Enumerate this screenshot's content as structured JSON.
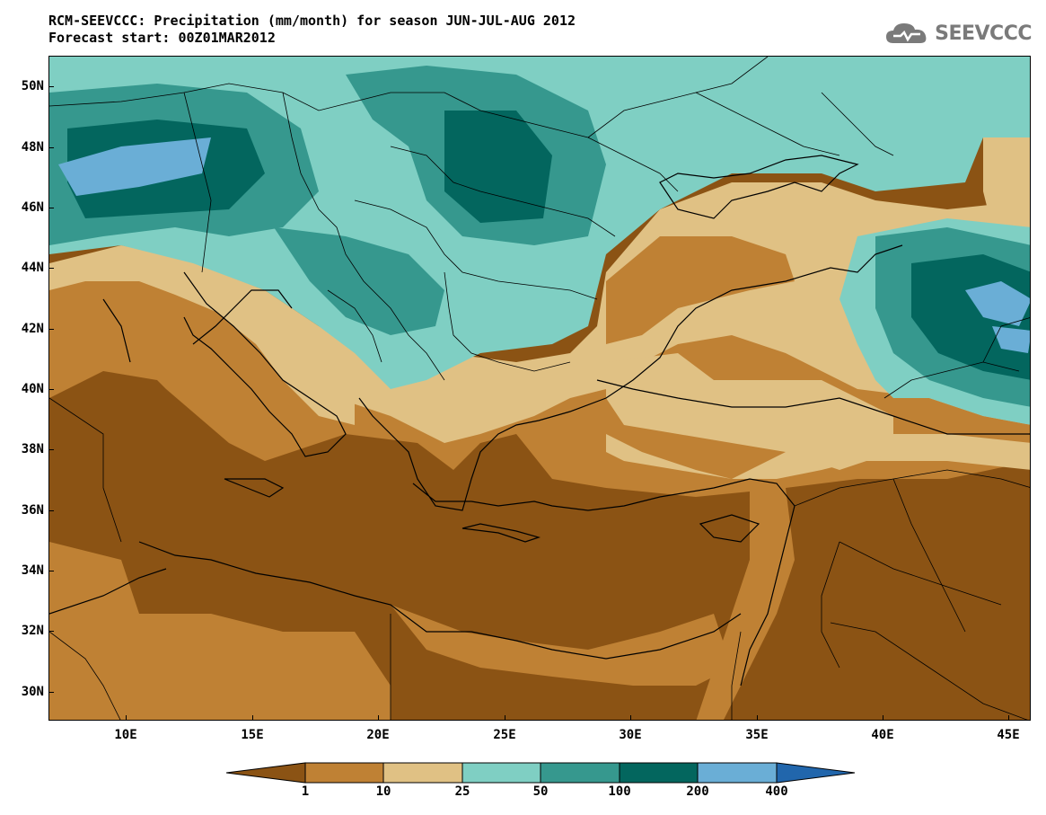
{
  "title_line1": "RCM-SEEVCCC: Precipitation (mm/month) for season JUN-JUL-AUG 2012",
  "title_line2": "Forecast start: 00Z01MAR2012",
  "logo_text": "SEEVCCC",
  "lat_labels": [
    "50N",
    "48N",
    "46N",
    "44N",
    "42N",
    "40N",
    "38N",
    "36N",
    "34N",
    "32N",
    "30N"
  ],
  "lon_labels": [
    "10E",
    "15E",
    "20E",
    "25E",
    "30E",
    "35E",
    "40E",
    "45E"
  ],
  "colorbar": {
    "labels": [
      "1",
      "10",
      "25",
      "50",
      "100",
      "200",
      "400"
    ],
    "colors": [
      "#8b5314",
      "#bf8134",
      "#e0c184",
      "#7fcfc3",
      "#36988e",
      "#03665e",
      "#6aaed6",
      "#2166ac"
    ]
  },
  "colors": {
    "very_dry": "#8b5314",
    "dry": "#bf8134",
    "moderate": "#e0c184",
    "wet": "#7fcfc3",
    "wetter": "#36988e",
    "very_wet": "#03665e",
    "extreme": "#6aaed6"
  }
}
